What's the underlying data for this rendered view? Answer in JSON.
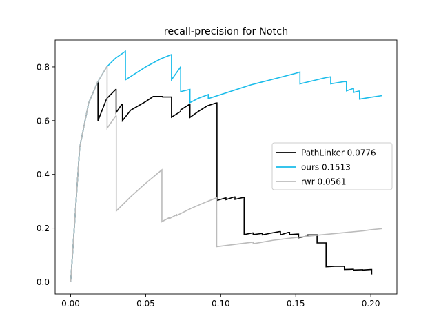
{
  "chart_data": {
    "type": "line",
    "title": "recall-precision for Notch",
    "xlabel": "",
    "ylabel": "",
    "xlim": [
      -0.01035,
      0.2174
    ],
    "ylim": [
      -0.045,
      0.9
    ],
    "xticks": [
      0.0,
      0.05,
      0.1,
      0.15,
      0.2
    ],
    "xtick_labels": [
      "0.00",
      "0.05",
      "0.10",
      "0.15",
      "0.20"
    ],
    "yticks": [
      0.0,
      0.2,
      0.4,
      0.6,
      0.8
    ],
    "ytick_labels": [
      "0.0",
      "0.2",
      "0.4",
      "0.6",
      "0.8"
    ],
    "grid": false,
    "legend_position": "center-right",
    "series": [
      {
        "name": "PathLinker 0.0776",
        "color": "#000000",
        "x": [
          0.0,
          0.006,
          0.012,
          0.018,
          0.0182,
          0.0182,
          0.024,
          0.03,
          0.0303,
          0.0303,
          0.034,
          0.0345,
          0.0345,
          0.04,
          0.05,
          0.055,
          0.061,
          0.0612,
          0.0612,
          0.067,
          0.0672,
          0.0672,
          0.073,
          0.0733,
          0.0733,
          0.079,
          0.0795,
          0.0795,
          0.085,
          0.091,
          0.097,
          0.0975,
          0.0975,
          0.103,
          0.1035,
          0.1035,
          0.109,
          0.1095,
          0.1095,
          0.115,
          0.1156,
          0.1156,
          0.121,
          0.1216,
          0.1216,
          0.127,
          0.1277,
          0.1277,
          0.133,
          0.139,
          0.1398,
          0.1398,
          0.145,
          0.1459,
          0.1459,
          0.151,
          0.1519,
          0.1519,
          0.157,
          0.1581,
          0.1581,
          0.164,
          0.1642,
          0.1642,
          0.17,
          0.1702,
          0.1702,
          0.176,
          0.1763,
          0.1763,
          0.182,
          0.1824,
          0.1824,
          0.188,
          0.1884,
          0.1884,
          0.194,
          0.1945,
          0.1945,
          0.2,
          0.2006,
          0.2006
        ],
        "y": [
          0.0,
          0.5,
          0.666,
          0.744,
          0.744,
          0.6,
          0.682,
          0.716,
          0.716,
          0.63,
          0.66,
          0.66,
          0.6,
          0.639,
          0.671,
          0.69,
          0.69,
          0.688,
          0.688,
          0.688,
          0.688,
          0.613,
          0.633,
          0.633,
          0.64,
          0.66,
          0.66,
          0.612,
          0.634,
          0.655,
          0.666,
          0.666,
          0.303,
          0.312,
          0.312,
          0.306,
          0.316,
          0.316,
          0.307,
          0.314,
          0.314,
          0.176,
          0.182,
          0.182,
          0.176,
          0.18,
          0.18,
          0.175,
          0.181,
          0.187,
          0.187,
          0.175,
          0.184,
          0.184,
          0.176,
          0.178,
          0.178,
          0.164,
          0.17,
          0.17,
          0.175,
          0.175,
          0.175,
          0.145,
          0.145,
          0.145,
          0.056,
          0.058,
          0.058,
          0.058,
          0.058,
          0.058,
          0.046,
          0.047,
          0.047,
          0.044,
          0.045,
          0.045,
          0.044,
          0.046,
          0.046,
          0.028
        ]
      },
      {
        "name": "ours 0.1513",
        "color": "#1abcea",
        "x": [
          0.0,
          0.006,
          0.012,
          0.018,
          0.024,
          0.03,
          0.0365,
          0.0365,
          0.05,
          0.06,
          0.0672,
          0.0672,
          0.0733,
          0.0733,
          0.0795,
          0.0795,
          0.085,
          0.0917,
          0.0917,
          0.12,
          0.15,
          0.1528,
          0.1528,
          0.17,
          0.1733,
          0.1733,
          0.182,
          0.1838,
          0.1838,
          0.1885,
          0.1885,
          0.192,
          0.1925,
          0.1925,
          0.2,
          0.2073
        ],
        "y": [
          0.0,
          0.5,
          0.666,
          0.744,
          0.8,
          0.833,
          0.858,
          0.752,
          0.8,
          0.83,
          0.846,
          0.752,
          0.8,
          0.708,
          0.716,
          0.667,
          0.683,
          0.697,
          0.682,
          0.733,
          0.776,
          0.781,
          0.737,
          0.76,
          0.763,
          0.737,
          0.745,
          0.745,
          0.711,
          0.72,
          0.705,
          0.71,
          0.71,
          0.68,
          0.687,
          0.693
        ]
      },
      {
        "name": "rwr 0.0561",
        "color": "#bbbbbb",
        "x": [
          0.0,
          0.006,
          0.012,
          0.018,
          0.024,
          0.0243,
          0.0243,
          0.03,
          0.0304,
          0.0304,
          0.04,
          0.05,
          0.0608,
          0.0608,
          0.0657,
          0.0657,
          0.0706,
          0.0706,
          0.08,
          0.09,
          0.0973,
          0.0973,
          0.11,
          0.1216,
          0.1216,
          0.135,
          0.15,
          0.165,
          0.18,
          0.195,
          0.2,
          0.2073
        ],
        "y": [
          0.0,
          0.5,
          0.666,
          0.744,
          0.8,
          0.8,
          0.572,
          0.617,
          0.617,
          0.264,
          0.317,
          0.367,
          0.417,
          0.224,
          0.239,
          0.235,
          0.25,
          0.247,
          0.273,
          0.297,
          0.313,
          0.131,
          0.14,
          0.148,
          0.142,
          0.155,
          0.165,
          0.174,
          0.182,
          0.19,
          0.194,
          0.198
        ]
      }
    ]
  }
}
